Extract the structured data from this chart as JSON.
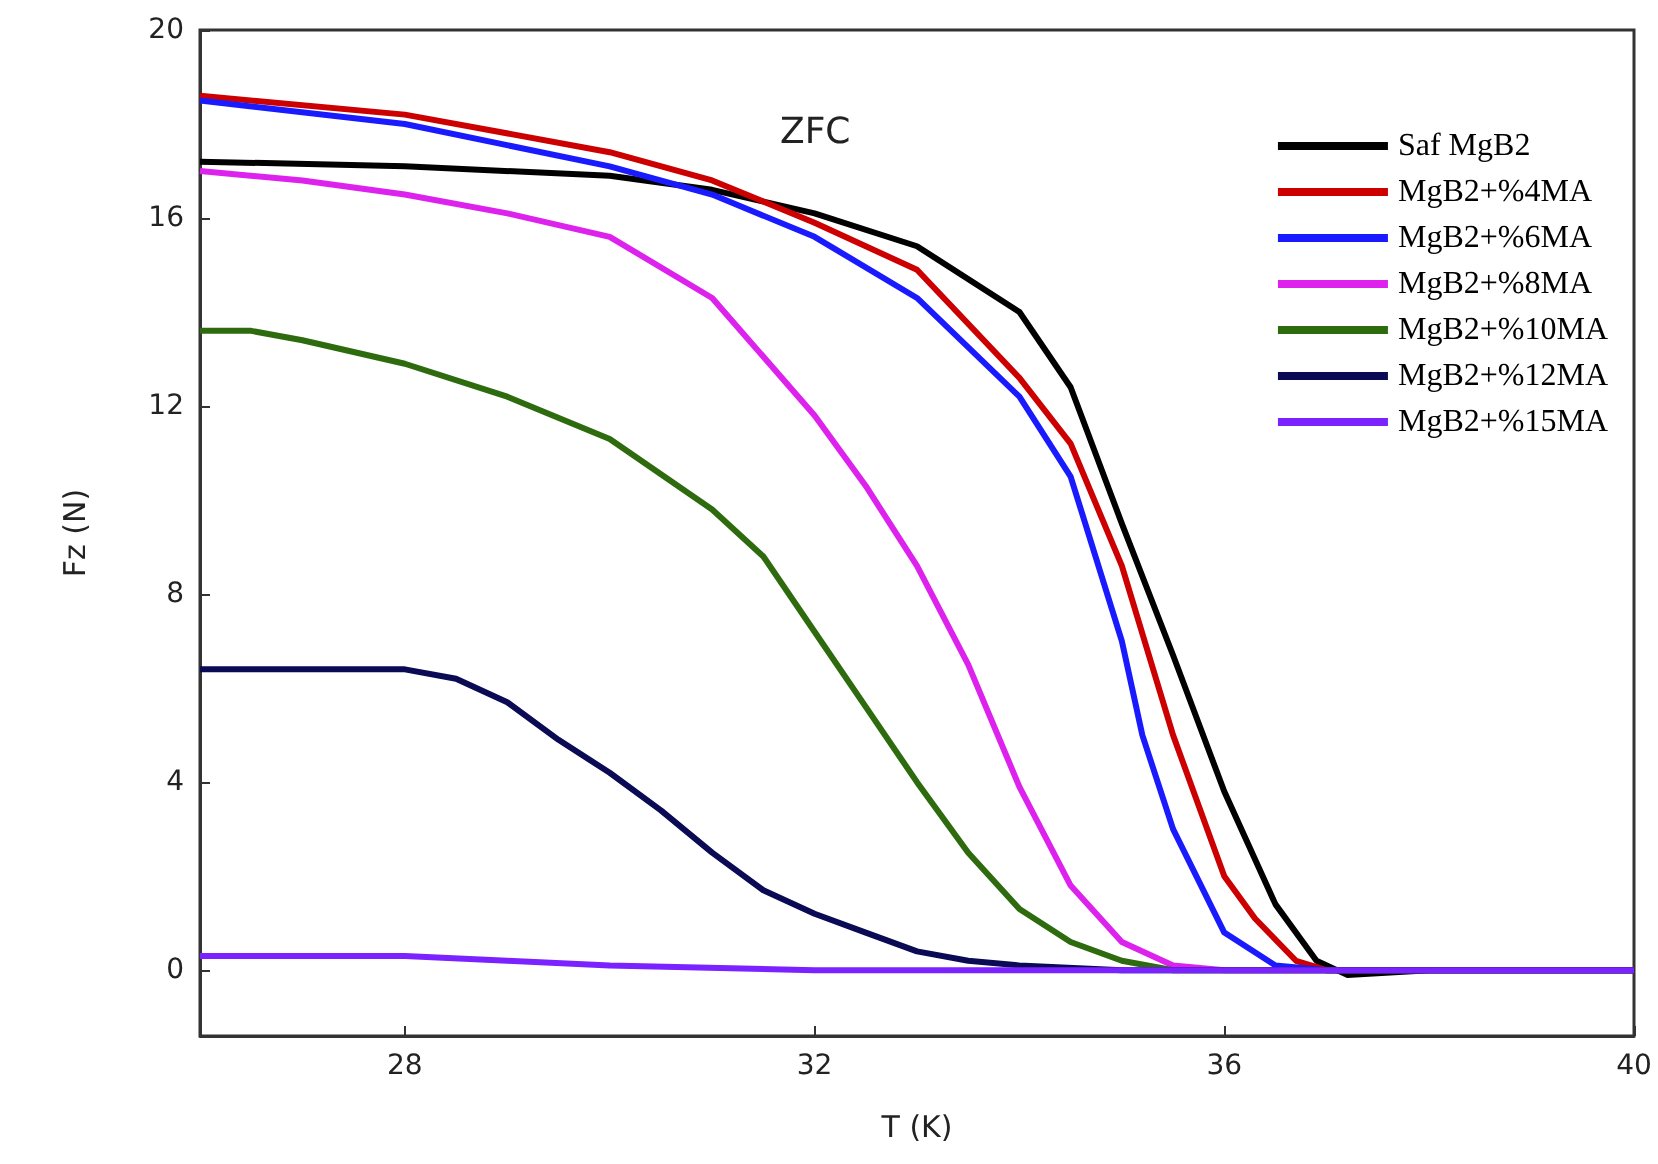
{
  "chart_data": {
    "type": "line",
    "xlabel": "T (K)",
    "ylabel": "Fz (N)",
    "annotations": [
      "ZFC"
    ],
    "xlim": [
      26,
      40
    ],
    "xticks": [
      28,
      32,
      36,
      40
    ],
    "ylim": [
      -1.4,
      20
    ],
    "yticks": [
      0,
      4,
      8,
      12,
      16,
      20
    ],
    "grid": false,
    "legend": "top right",
    "line_style": "solid",
    "series": [
      {
        "name": "Saf MgB2",
        "color": "#000000",
        "x": [
          26,
          28,
          30,
          31,
          32,
          33,
          34,
          34.5,
          35,
          35.5,
          36,
          36.5,
          36.9,
          37.2,
          38,
          40
        ],
        "values": [
          17.2,
          17.1,
          16.9,
          16.6,
          16.1,
          15.4,
          14.0,
          12.4,
          9.5,
          6.7,
          3.8,
          1.4,
          0.2,
          -0.1,
          0,
          0
        ]
      },
      {
        "name": "MgB2+%4MA",
        "color": "#cc0000",
        "x": [
          26,
          28,
          30,
          31,
          32,
          33,
          34,
          34.5,
          35,
          35.5,
          36,
          36.3,
          36.7,
          37,
          40
        ],
        "values": [
          18.6,
          18.2,
          17.4,
          16.8,
          15.9,
          14.9,
          12.6,
          11.2,
          8.6,
          5.0,
          2.0,
          1.1,
          0.2,
          0,
          0
        ]
      },
      {
        "name": "MgB2+%6MA",
        "color": "#1a1aff",
        "x": [
          26,
          28,
          30,
          31,
          32,
          33,
          34,
          34.5,
          35,
          35.2,
          35.5,
          36,
          36.5,
          37,
          40
        ],
        "values": [
          18.5,
          18.0,
          17.1,
          16.5,
          15.6,
          14.3,
          12.2,
          10.5,
          7.0,
          5.0,
          3.0,
          0.8,
          0.1,
          0,
          0
        ]
      },
      {
        "name": "MgB2+%8MA",
        "color": "#dd22ee",
        "x": [
          26,
          27,
          28,
          29,
          30,
          31,
          32,
          32.5,
          33,
          33.5,
          34,
          34.5,
          35,
          35.5,
          36,
          40
        ],
        "values": [
          17.0,
          16.8,
          16.5,
          16.1,
          15.6,
          14.3,
          11.8,
          10.3,
          8.6,
          6.5,
          3.9,
          1.8,
          0.6,
          0.1,
          0,
          0
        ]
      },
      {
        "name": "MgB2+%10MA",
        "color": "#2e6b0e",
        "x": [
          26,
          26.5,
          27,
          28,
          29,
          30,
          31,
          31.5,
          32,
          32.5,
          33,
          33.5,
          34,
          34.5,
          35,
          35.5,
          40
        ],
        "values": [
          13.6,
          13.6,
          13.4,
          12.9,
          12.2,
          11.3,
          9.8,
          8.8,
          7.2,
          5.6,
          4.0,
          2.5,
          1.3,
          0.6,
          0.2,
          0,
          0
        ]
      },
      {
        "name": "MgB2+%12MA",
        "color": "#0a0a55",
        "x": [
          26,
          27,
          28,
          28.5,
          29,
          29.5,
          30,
          30.5,
          31,
          31.5,
          32,
          32.5,
          33,
          33.5,
          34,
          35,
          40
        ],
        "values": [
          6.4,
          6.4,
          6.4,
          6.2,
          5.7,
          4.9,
          4.2,
          3.4,
          2.5,
          1.7,
          1.2,
          0.8,
          0.4,
          0.2,
          0.1,
          0,
          0
        ]
      },
      {
        "name": "MgB2+%15MA",
        "color": "#7a22ff",
        "x": [
          26,
          28,
          29,
          30,
          32,
          40
        ],
        "values": [
          0.3,
          0.3,
          0.2,
          0.1,
          0,
          0
        ]
      }
    ]
  }
}
